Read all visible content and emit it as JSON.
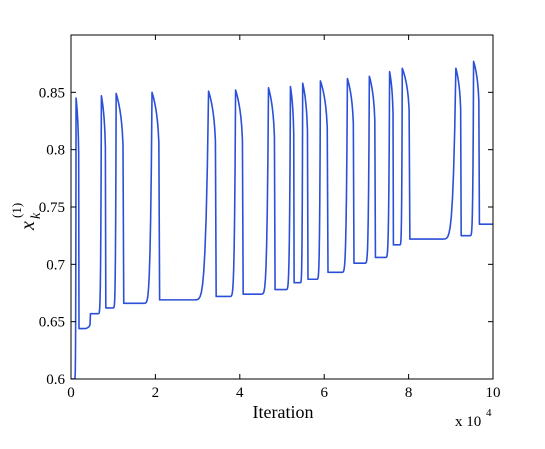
{
  "chart_data": {
    "type": "line",
    "title": "",
    "xlabel": "Iteration",
    "ylabel_base": "x",
    "ylabel_sub": "k",
    "ylabel_sup": "(1)",
    "x_exponent_label": "x 10",
    "x_exponent": "4",
    "xlim": [
      0,
      10
    ],
    "ylim": [
      0.6,
      0.9
    ],
    "xticks": [
      0,
      2,
      4,
      6,
      8,
      10
    ],
    "xtick_labels": [
      "0",
      "2",
      "4",
      "6",
      "8",
      "10"
    ],
    "yticks": [
      0.6,
      0.65,
      0.7,
      0.75,
      0.8,
      0.85
    ],
    "ytick_labels": [
      "0.6",
      "0.65",
      "0.7",
      "0.75",
      "0.8",
      "0.85"
    ],
    "grid": false,
    "series_color": "#2b4fd8",
    "start_value": 0.6,
    "spikes": [
      {
        "x": 0.12,
        "peak": 0.845,
        "base_after": 0.644
      },
      {
        "x": 0.35,
        "peak": 0.644,
        "base_after": 0.657
      },
      {
        "x": 0.72,
        "peak": 0.847,
        "base_after": 0.662
      },
      {
        "x": 1.07,
        "peak": 0.849,
        "base_after": 0.666
      },
      {
        "x": 1.92,
        "peak": 0.85,
        "base_after": 0.669
      },
      {
        "x": 3.26,
        "peak": 0.851,
        "base_after": 0.672
      },
      {
        "x": 3.9,
        "peak": 0.852,
        "base_after": 0.674
      },
      {
        "x": 4.68,
        "peak": 0.854,
        "base_after": 0.678
      },
      {
        "x": 5.2,
        "peak": 0.855,
        "base_after": 0.684
      },
      {
        "x": 5.49,
        "peak": 0.858,
        "base_after": 0.687
      },
      {
        "x": 5.91,
        "peak": 0.86,
        "base_after": 0.693
      },
      {
        "x": 6.55,
        "peak": 0.862,
        "base_after": 0.701
      },
      {
        "x": 7.07,
        "peak": 0.864,
        "base_after": 0.706
      },
      {
        "x": 7.55,
        "peak": 0.868,
        "base_after": 0.717
      },
      {
        "x": 7.85,
        "peak": 0.871,
        "base_after": 0.722
      },
      {
        "x": 9.12,
        "peak": 0.871,
        "base_after": 0.725
      },
      {
        "x": 9.54,
        "peak": 0.877,
        "base_after": 0.735
      }
    ],
    "x_end": 10
  }
}
